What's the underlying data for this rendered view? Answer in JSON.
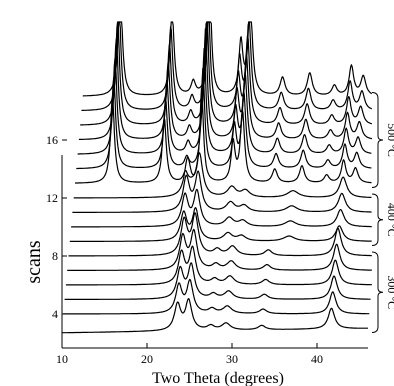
{
  "chart_data": {
    "type": "line",
    "title": "",
    "xlabel": "Two Theta (degrees)",
    "ylabel": "scans",
    "x_ticks": [
      10,
      20,
      30,
      40
    ],
    "y_ticks": [
      4,
      8,
      12,
      16
    ],
    "xlim": [
      10,
      46
    ],
    "ylim": [
      2,
      19
    ],
    "grid": false,
    "groups": [
      {
        "label": "500 °C",
        "scans": [
          13,
          14,
          15,
          16,
          17,
          18,
          19
        ],
        "peaks": [
          {
            "x": 14.4,
            "h": 10,
            "w": 0.28
          },
          {
            "x": 20.5,
            "h": 7.6,
            "w": 0.28
          },
          {
            "x": 23.0,
            "h": 1.2,
            "w": 0.3
          },
          {
            "x": 24.9,
            "h": 11,
            "w": 0.25
          },
          {
            "x": 28.6,
            "h": 4.6,
            "w": 0.28
          },
          {
            "x": 29.7,
            "h": 8.2,
            "w": 0.3
          },
          {
            "x": 33.5,
            "h": 1.6,
            "w": 0.35
          },
          {
            "x": 36.7,
            "h": 2.0,
            "w": 0.35
          },
          {
            "x": 39.6,
            "h": 0.9,
            "w": 0.35
          },
          {
            "x": 41.6,
            "h": 2.6,
            "w": 0.32
          },
          {
            "x": 43.0,
            "h": 1.7,
            "w": 0.35
          }
        ]
      },
      {
        "label": "400 °C",
        "scans": [
          9,
          10,
          11,
          12
        ],
        "peaks": [
          {
            "x": 23.4,
            "h": 3.2,
            "w": 0.45
          },
          {
            "x": 24.8,
            "h": 3.6,
            "w": 0.45
          },
          {
            "x": 28.6,
            "h": 0.9,
            "w": 0.6
          },
          {
            "x": 30.2,
            "h": 0.6,
            "w": 0.6
          },
          {
            "x": 35.8,
            "h": 0.6,
            "w": 0.8
          },
          {
            "x": 41.7,
            "h": 1.8,
            "w": 0.5
          }
        ]
      },
      {
        "label": "300 °C",
        "scans": [
          3,
          4,
          5,
          6,
          7,
          8
        ],
        "peaks": [
          {
            "x": 23.6,
            "h": 3.0,
            "w": 0.45
          },
          {
            "x": 24.9,
            "h": 3.4,
            "w": 0.45
          },
          {
            "x": 27.5,
            "h": 0.5,
            "w": 0.5
          },
          {
            "x": 29.3,
            "h": 0.8,
            "w": 0.6
          },
          {
            "x": 33.5,
            "h": 0.5,
            "w": 0.5
          },
          {
            "x": 41.7,
            "h": 2.4,
            "w": 0.45
          }
        ]
      }
    ]
  }
}
